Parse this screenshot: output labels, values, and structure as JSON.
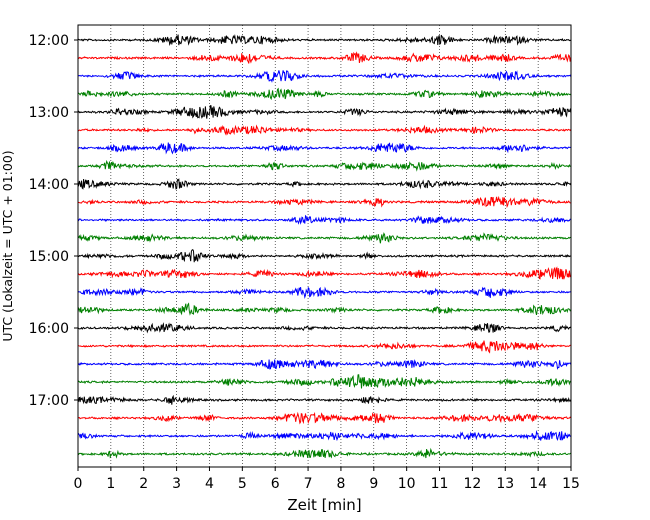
{
  "chart_data": {
    "type": "line",
    "title": "",
    "xlabel": "Zeit  [min]",
    "ylabel": "UTC (Lokalzeit = UTC + 01:00)",
    "xlim": [
      0,
      15
    ],
    "x_ticks": [
      0,
      1,
      2,
      3,
      4,
      5,
      6,
      7,
      8,
      9,
      10,
      11,
      12,
      13,
      14,
      15
    ],
    "x_tick_labels": [
      "0",
      "1",
      "2",
      "3",
      "4",
      "5",
      "6",
      "7",
      "8",
      "9",
      "10",
      "11",
      "12",
      "13",
      "14",
      "15"
    ],
    "y_ticks": [
      "12:00",
      "13:00",
      "14:00",
      "15:00",
      "16:00",
      "17:00"
    ],
    "trace_interval_min": 15,
    "trace_start": "12:00",
    "trace_end": "17:45",
    "grid_x": true,
    "grid_y": false,
    "trace_colors": [
      "#000000",
      "#ff0000",
      "#0000ff",
      "#008000"
    ],
    "series": [
      {
        "start": "12:00",
        "color": "#000000"
      },
      {
        "start": "12:15",
        "color": "#ff0000"
      },
      {
        "start": "12:30",
        "color": "#0000ff"
      },
      {
        "start": "12:45",
        "color": "#008000"
      },
      {
        "start": "13:00",
        "color": "#000000"
      },
      {
        "start": "13:15",
        "color": "#ff0000"
      },
      {
        "start": "13:30",
        "color": "#0000ff"
      },
      {
        "start": "13:45",
        "color": "#008000"
      },
      {
        "start": "14:00",
        "color": "#000000"
      },
      {
        "start": "14:15",
        "color": "#ff0000"
      },
      {
        "start": "14:30",
        "color": "#0000ff"
      },
      {
        "start": "14:45",
        "color": "#008000"
      },
      {
        "start": "15:00",
        "color": "#000000"
      },
      {
        "start": "15:15",
        "color": "#ff0000"
      },
      {
        "start": "15:30",
        "color": "#0000ff"
      },
      {
        "start": "15:45",
        "color": "#008000"
      },
      {
        "start": "16:00",
        "color": "#000000"
      },
      {
        "start": "16:15",
        "color": "#ff0000"
      },
      {
        "start": "16:30",
        "color": "#0000ff"
      },
      {
        "start": "16:45",
        "color": "#008000"
      },
      {
        "start": "17:00",
        "color": "#000000"
      },
      {
        "start": "17:15",
        "color": "#ff0000"
      },
      {
        "start": "17:30",
        "color": "#0000ff"
      },
      {
        "start": "17:45",
        "color": "#008000"
      }
    ]
  }
}
